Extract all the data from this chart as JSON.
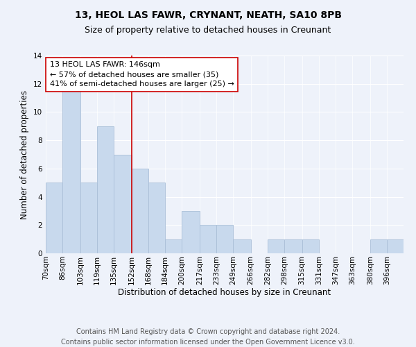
{
  "title1": "13, HEOL LAS FAWR, CRYNANT, NEATH, SA10 8PB",
  "title2": "Size of property relative to detached houses in Creunant",
  "xlabel": "Distribution of detached houses by size in Creunant",
  "ylabel": "Number of detached properties",
  "categories": [
    "70sqm",
    "86sqm",
    "103sqm",
    "119sqm",
    "135sqm",
    "152sqm",
    "168sqm",
    "184sqm",
    "200sqm",
    "217sqm",
    "233sqm",
    "249sqm",
    "266sqm",
    "282sqm",
    "298sqm",
    "315sqm",
    "331sqm",
    "347sqm",
    "363sqm",
    "380sqm",
    "396sqm"
  ],
  "values": [
    5,
    12,
    5,
    9,
    7,
    6,
    5,
    1,
    3,
    2,
    2,
    1,
    0,
    1,
    1,
    1,
    0,
    0,
    0,
    1,
    1
  ],
  "bar_color": "#c8d9ed",
  "bar_edge_color": "#aabfd8",
  "bin_edges": [
    70,
    86,
    103,
    119,
    135,
    152,
    168,
    184,
    200,
    217,
    233,
    249,
    266,
    282,
    298,
    315,
    331,
    347,
    363,
    380,
    396,
    412
  ],
  "annotation_title": "13 HEOL LAS FAWR: 146sqm",
  "annotation_line1": "← 57% of detached houses are smaller (35)",
  "annotation_line2": "41% of semi-detached houses are larger (25) →",
  "ylim": [
    0,
    14
  ],
  "yticks": [
    0,
    2,
    4,
    6,
    8,
    10,
    12,
    14
  ],
  "footer1": "Contains HM Land Registry data © Crown copyright and database right 2024.",
  "footer2": "Contains public sector information licensed under the Open Government Licence v3.0.",
  "background_color": "#eef2fa",
  "grid_color": "#ffffff",
  "annotation_box_color": "#ffffff",
  "annotation_box_edge": "#cc0000",
  "vline_color": "#cc0000",
  "title1_fontsize": 10,
  "title2_fontsize": 9,
  "xlabel_fontsize": 8.5,
  "ylabel_fontsize": 8.5,
  "tick_fontsize": 7.5,
  "annotation_fontsize": 8,
  "footer_fontsize": 7
}
